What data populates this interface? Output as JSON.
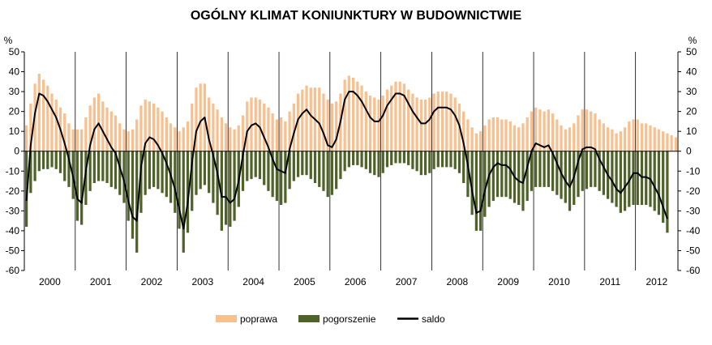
{
  "chart_data": {
    "type": "bar",
    "title": "OGÓLNY KLIMAT KONIUNKTURY W BUDOWNICTWIE",
    "ylabel_left": "%",
    "ylabel_right": "%",
    "ylim": [
      -60,
      50
    ],
    "yticks": [
      50,
      40,
      30,
      20,
      10,
      0,
      -10,
      -20,
      -30,
      -40,
      -50,
      -60
    ],
    "years": [
      "2000",
      "2001",
      "2002",
      "2003",
      "2004",
      "2005",
      "2006",
      "2007",
      "2008",
      "2009",
      "2010",
      "2011",
      "2012"
    ],
    "months_per_year": 12,
    "last_year_months": 10,
    "colors": {
      "poprawa": "#f8c08f",
      "pogorszenie": "#4f6228",
      "saldo": "#000000"
    },
    "legend_position": "bottom-center",
    "series": [
      {
        "name": "poprawa",
        "kind": "bar",
        "values": [
          13,
          24,
          34,
          39,
          36,
          33,
          29,
          26,
          22,
          19,
          14,
          11,
          11,
          11,
          17,
          23,
          27,
          29,
          25,
          22,
          20,
          18,
          14,
          11,
          10,
          11,
          16,
          23,
          26,
          25,
          24,
          22,
          20,
          17,
          14,
          12,
          10,
          12,
          15,
          24,
          32,
          34,
          34,
          27,
          24,
          21,
          17,
          14,
          12,
          11,
          13,
          18,
          25,
          27,
          27,
          26,
          24,
          22,
          19,
          16,
          17,
          15,
          20,
          24,
          29,
          31,
          33,
          32,
          32,
          32,
          29,
          26,
          24,
          25,
          29,
          36,
          38,
          37,
          35,
          33,
          30,
          28,
          27,
          26,
          28,
          31,
          33,
          35,
          35,
          34,
          31,
          29,
          27,
          26,
          26,
          27,
          29,
          30,
          30,
          30,
          29,
          27,
          24,
          20,
          16,
          12,
          9,
          10,
          13,
          16,
          17,
          17,
          16,
          16,
          15,
          13,
          12,
          14,
          17,
          20,
          22,
          21,
          20,
          21,
          19,
          16,
          13,
          11,
          12,
          14,
          18,
          21,
          21,
          20,
          19,
          16,
          14,
          12,
          11,
          9,
          10,
          12,
          15,
          16,
          16,
          14,
          14,
          13,
          12,
          11,
          10,
          9,
          8,
          7
        ]
      },
      {
        "name": "pogorszenie",
        "kind": "bar",
        "values": [
          -38,
          -21,
          -15,
          -10,
          -9,
          -9,
          -8,
          -9,
          -11,
          -15,
          -18,
          -24,
          -35,
          -37,
          -27,
          -20,
          -16,
          -15,
          -15,
          -16,
          -18,
          -19,
          -22,
          -26,
          -35,
          -44,
          -51,
          -31,
          -22,
          -19,
          -18,
          -19,
          -21,
          -23,
          -26,
          -31,
          -39,
          -51,
          -41,
          -30,
          -22,
          -19,
          -17,
          -21,
          -26,
          -32,
          -40,
          -37,
          -38,
          -35,
          -28,
          -20,
          -15,
          -14,
          -13,
          -14,
          -17,
          -20,
          -23,
          -25,
          -27,
          -26,
          -19,
          -15,
          -13,
          -12,
          -12,
          -14,
          -16,
          -18,
          -20,
          -23,
          -22,
          -19,
          -14,
          -10,
          -8,
          -7,
          -7,
          -8,
          -9,
          -11,
          -12,
          -13,
          -11,
          -8,
          -7,
          -6,
          -6,
          -6,
          -7,
          -9,
          -10,
          -12,
          -12,
          -11,
          -9,
          -8,
          -8,
          -8,
          -8,
          -9,
          -11,
          -16,
          -23,
          -32,
          -40,
          -40,
          -33,
          -28,
          -25,
          -23,
          -23,
          -23,
          -24,
          -26,
          -27,
          -30,
          -25,
          -20,
          -18,
          -18,
          -18,
          -18,
          -20,
          -22,
          -24,
          -26,
          -30,
          -27,
          -23,
          -20,
          -19,
          -18,
          -18,
          -20,
          -22,
          -24,
          -26,
          -28,
          -31,
          -30,
          -28,
          -27,
          -27,
          -27,
          -27,
          -28,
          -30,
          -32,
          -36,
          -41
        ]
      },
      {
        "name": "saldo",
        "kind": "line",
        "values": [
          -25,
          3,
          19,
          29,
          28,
          25,
          21,
          17,
          11,
          4,
          -4,
          -13,
          -24,
          -26,
          -10,
          3,
          11,
          14,
          10,
          6,
          2,
          -1,
          -8,
          -15,
          -25,
          -33,
          -35,
          -8,
          4,
          7,
          6,
          3,
          -1,
          -6,
          -12,
          -19,
          -29,
          -39,
          -26,
          -6,
          10,
          15,
          17,
          6,
          -2,
          -11,
          -23,
          -23,
          -26,
          -24,
          -15,
          -2,
          10,
          13,
          14,
          12,
          7,
          2,
          -4,
          -9,
          -10,
          -11,
          1,
          9,
          16,
          19,
          21,
          18,
          16,
          14,
          9,
          3,
          2,
          6,
          15,
          26,
          30,
          30,
          28,
          25,
          21,
          17,
          15,
          15,
          18,
          23,
          26,
          29,
          29,
          28,
          24,
          20,
          17,
          14,
          14,
          16,
          20,
          22,
          22,
          22,
          21,
          18,
          13,
          4,
          -7,
          -20,
          -31,
          -30,
          -20,
          -12,
          -8,
          -6,
          -7,
          -7,
          -9,
          -13,
          -15,
          -16,
          -8,
          0,
          4,
          3,
          2,
          3,
          -1,
          -6,
          -11,
          -15,
          -18,
          -13,
          -5,
          1,
          2,
          2,
          1,
          -4,
          -8,
          -12,
          -15,
          -19,
          -21,
          -18,
          -15,
          -11,
          -11,
          -13,
          -13,
          -14,
          -18,
          -22,
          -28,
          -34
        ]
      }
    ]
  }
}
